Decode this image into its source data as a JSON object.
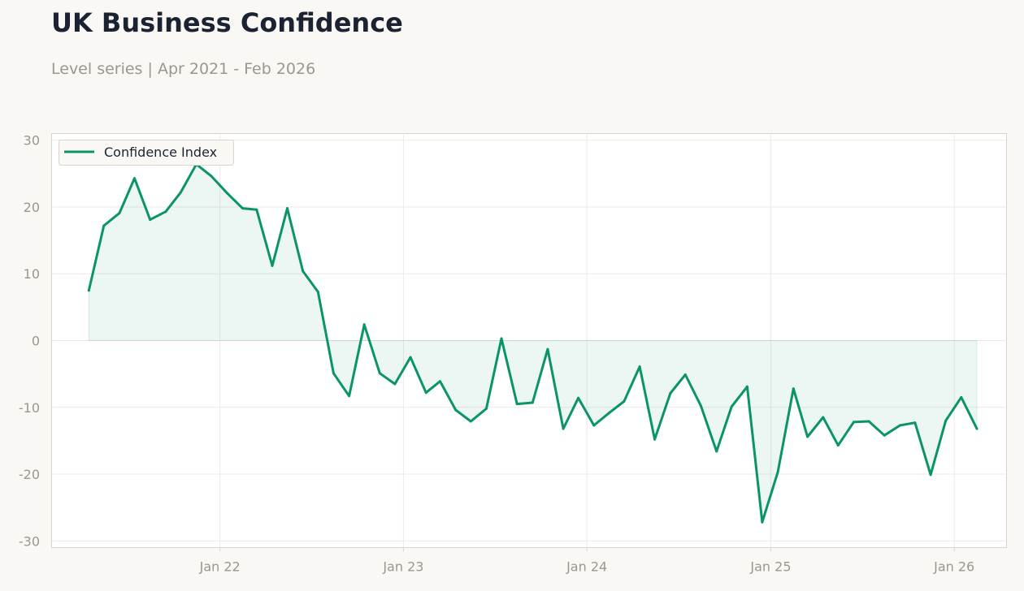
{
  "header": {
    "title": "UK Business Confidence",
    "subtitle": "Level series | Apr 2021 - Feb 2026"
  },
  "colors": {
    "line": "#0a9467",
    "fill": "#0a9467",
    "grid": "#ece9e4",
    "frame": "#d9d5cd",
    "text_muted": "#9a9790",
    "title": "#1b2333",
    "background": "#f9f8f5",
    "plot_background": "#ffffff"
  },
  "chart_data": {
    "type": "area",
    "title": "UK Business Confidence",
    "subtitle": "Level series | Apr 2021 - Feb 2026",
    "xlabel": "",
    "ylabel": "",
    "ylim": [
      -31,
      31
    ],
    "xlim": [
      "2021-01-31",
      "2026-04-15"
    ],
    "grid": true,
    "legend_position": "top-left",
    "y_ticks": [
      30,
      20,
      10,
      0,
      -10,
      -20,
      -30
    ],
    "x_ticks": [
      {
        "date": "2022-01-01",
        "label": "Jan 22"
      },
      {
        "date": "2023-01-01",
        "label": "Jan 23"
      },
      {
        "date": "2024-01-01",
        "label": "Jan 24"
      },
      {
        "date": "2025-01-01",
        "label": "Jan 25"
      },
      {
        "date": "2026-01-01",
        "label": "Jan 26"
      }
    ],
    "series": [
      {
        "name": "Confidence Index",
        "start": "2021-04",
        "frequency": "monthly",
        "x": [
          "2021-04",
          "2021-05",
          "2021-06",
          "2021-07",
          "2021-08",
          "2021-09",
          "2021-10",
          "2021-11",
          "2021-12",
          "2022-01",
          "2022-02",
          "2022-03",
          "2022-04",
          "2022-05",
          "2022-06",
          "2022-07",
          "2022-08",
          "2022-09",
          "2022-10",
          "2022-11",
          "2022-12",
          "2023-01",
          "2023-02",
          "2023-03",
          "2023-04",
          "2023-05",
          "2023-06",
          "2023-07",
          "2023-08",
          "2023-09",
          "2023-10",
          "2023-11",
          "2023-12",
          "2024-01",
          "2024-02",
          "2024-03",
          "2024-04",
          "2024-05",
          "2024-06",
          "2024-07",
          "2024-08",
          "2024-09",
          "2024-10",
          "2024-11",
          "2024-12",
          "2025-01",
          "2025-02",
          "2025-03",
          "2025-04",
          "2025-05",
          "2025-06",
          "2025-07",
          "2025-08",
          "2025-09",
          "2025-10",
          "2025-11",
          "2025-12",
          "2026-01",
          "2026-02"
        ],
        "values": [
          7.5,
          17.2,
          19.1,
          24.3,
          18.1,
          19.3,
          22.2,
          26.4,
          24.6,
          22.1,
          19.8,
          19.6,
          11.2,
          19.8,
          10.4,
          7.3,
          -4.9,
          -8.3,
          2.4,
          -4.9,
          -6.5,
          -2.5,
          -7.8,
          -6.1,
          -10.4,
          -12.1,
          -10.2,
          0.3,
          -9.5,
          -9.3,
          -1.3,
          -13.2,
          -8.6,
          -12.7,
          -10.8,
          -9.1,
          -3.9,
          -14.8,
          -7.9,
          -5.1,
          -9.8,
          -16.6,
          -9.9,
          -6.9,
          -27.2,
          -19.7,
          -7.2,
          -14.4,
          -11.5,
          -15.7,
          -12.2,
          -12.1,
          -14.2,
          -12.7,
          -12.3,
          -20.1,
          -12.0,
          -8.5,
          -13.2
        ]
      }
    ]
  }
}
